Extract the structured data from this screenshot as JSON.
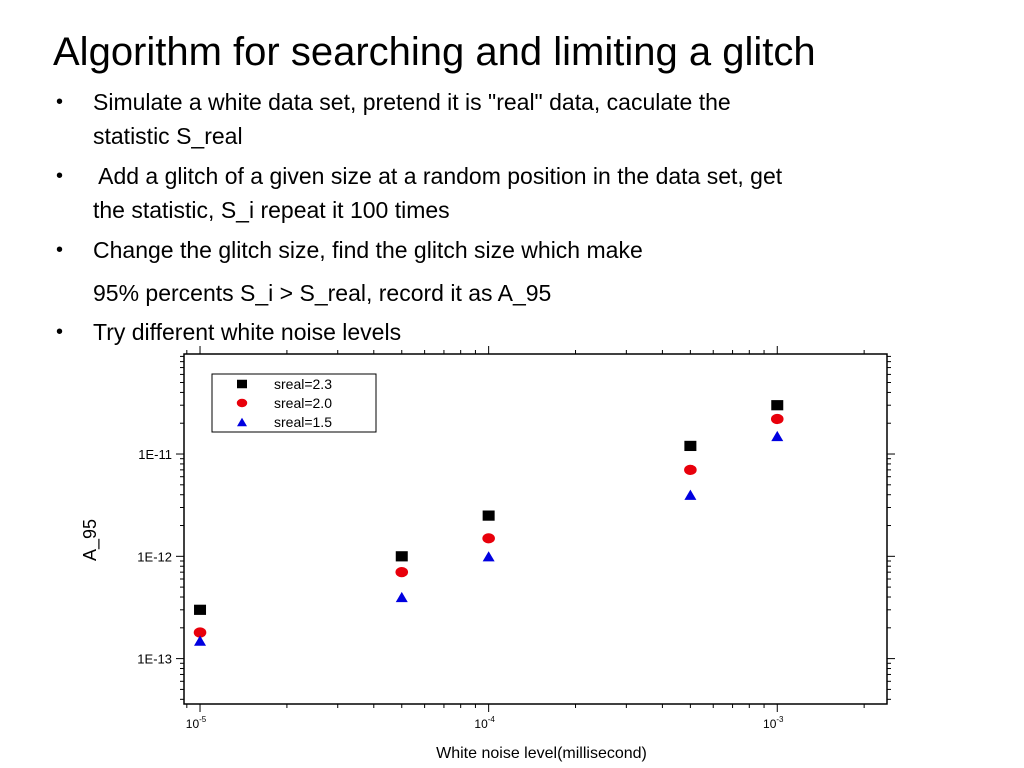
{
  "slide": {
    "title": "Algorithm for  searching  and limiting a glitch",
    "bullets": [
      {
        "marker": "•",
        "lines": [
          "Simulate a white data set, pretend it  is \"real\" data,  caculate the",
          "statistic  S_real"
        ]
      },
      {
        "marker": "•",
        "lines": [
          " Add a glitch of a given size at a random position in the data set, get",
          "the statistic, S_i repeat it 100 times"
        ]
      },
      {
        "marker": "•",
        "lines": [
          "Change the glitch size, find the glitch size which make"
        ]
      },
      {
        "marker": "",
        "lines": [
          "95% percents S_i > S_real, record it as A_95"
        ]
      },
      {
        "marker": "•",
        "lines": [
          "Try different white noise levels"
        ]
      }
    ]
  },
  "chart_data": {
    "type": "scatter",
    "xlabel": "White noise level(millisecond)",
    "ylabel": "A_95",
    "x_scale": "log",
    "y_scale": "log",
    "x_ticks": [
      {
        "value": 1e-05,
        "base": "10",
        "exp": "-5"
      },
      {
        "value": 0.0001,
        "base": "10",
        "exp": "-4"
      },
      {
        "value": 0.001,
        "base": "10",
        "exp": "-3"
      }
    ],
    "y_ticks": [
      {
        "value": 1e-13,
        "label": "1E-13"
      },
      {
        "value": 1e-12,
        "label": "1E-12"
      },
      {
        "value": 1e-11,
        "label": "1E-11"
      }
    ],
    "xlim": [
      8.8e-06,
      0.0024
    ],
    "ylim": [
      3.6e-14,
      9.5e-11
    ],
    "legend_position": "top-left",
    "grid": false,
    "x": [
      1e-05,
      5e-05,
      0.0001,
      0.0005,
      0.001
    ],
    "series": [
      {
        "name": "sreal=2.3",
        "marker": "square",
        "color": "#000000",
        "values": [
          3e-13,
          1e-12,
          2.5e-12,
          1.2e-11,
          3e-11
        ]
      },
      {
        "name": "sreal=2.0",
        "marker": "circle",
        "color": "#e8000b",
        "values": [
          1.8e-13,
          7e-13,
          1.5e-12,
          7e-12,
          2.2e-11
        ]
      },
      {
        "name": "sreal=1.5",
        "marker": "triangle",
        "color": "#0000e0",
        "values": [
          1.5e-13,
          4e-13,
          1e-12,
          4e-12,
          1.5e-11
        ]
      }
    ]
  }
}
